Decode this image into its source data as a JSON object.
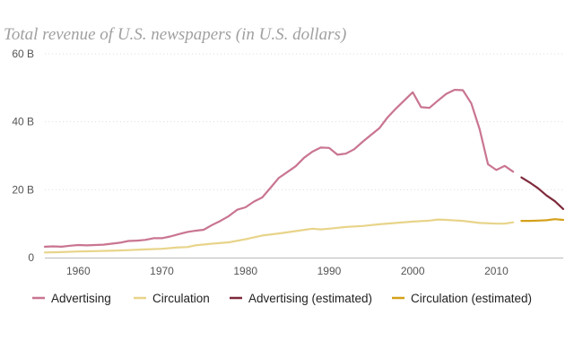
{
  "chart_data": {
    "type": "line",
    "title": "Total revenue of U.S. newspapers (in U.S. dollars)",
    "xlabel": "",
    "ylabel": "",
    "xlim": [
      1956,
      2018
    ],
    "ylim": [
      0,
      60
    ],
    "y_ticks": [
      {
        "value": 0,
        "label": "0"
      },
      {
        "value": 20,
        "label": "20 B"
      },
      {
        "value": 40,
        "label": "40 B"
      },
      {
        "value": 60,
        "label": "60 B"
      }
    ],
    "x_ticks": [
      {
        "value": 1960,
        "label": "1960"
      },
      {
        "value": 1970,
        "label": "1970"
      },
      {
        "value": 1980,
        "label": "1980"
      },
      {
        "value": 1990,
        "label": "1990"
      },
      {
        "value": 2000,
        "label": "2000"
      },
      {
        "value": 2010,
        "label": "2010"
      }
    ],
    "grid": true,
    "legend_position": "bottom",
    "series": [
      {
        "name": "Advertising",
        "color": "#c97590",
        "dash": false,
        "points": [
          [
            1956,
            3.2
          ],
          [
            1957,
            3.3
          ],
          [
            1958,
            3.2
          ],
          [
            1959,
            3.5
          ],
          [
            1960,
            3.7
          ],
          [
            1961,
            3.6
          ],
          [
            1962,
            3.7
          ],
          [
            1963,
            3.8
          ],
          [
            1964,
            4.1
          ],
          [
            1965,
            4.4
          ],
          [
            1966,
            4.9
          ],
          [
            1967,
            5.0
          ],
          [
            1968,
            5.2
          ],
          [
            1969,
            5.7
          ],
          [
            1970,
            5.7
          ],
          [
            1971,
            6.2
          ],
          [
            1972,
            6.9
          ],
          [
            1973,
            7.5
          ],
          [
            1974,
            7.9
          ],
          [
            1975,
            8.2
          ],
          [
            1976,
            9.6
          ],
          [
            1977,
            10.8
          ],
          [
            1978,
            12.2
          ],
          [
            1979,
            14.1
          ],
          [
            1980,
            14.8
          ],
          [
            1981,
            16.5
          ],
          [
            1982,
            17.7
          ],
          [
            1983,
            20.6
          ],
          [
            1984,
            23.5
          ],
          [
            1985,
            25.2
          ],
          [
            1986,
            26.9
          ],
          [
            1987,
            29.4
          ],
          [
            1988,
            31.2
          ],
          [
            1989,
            32.4
          ],
          [
            1990,
            32.3
          ],
          [
            1991,
            30.3
          ],
          [
            1992,
            30.6
          ],
          [
            1993,
            31.9
          ],
          [
            1994,
            34.1
          ],
          [
            1995,
            36.1
          ],
          [
            1996,
            38.1
          ],
          [
            1997,
            41.3
          ],
          [
            1998,
            43.9
          ],
          [
            1999,
            46.3
          ],
          [
            2000,
            48.7
          ],
          [
            2001,
            44.3
          ],
          [
            2002,
            44.1
          ],
          [
            2003,
            46.2
          ],
          [
            2004,
            48.2
          ],
          [
            2005,
            49.4
          ],
          [
            2006,
            49.3
          ],
          [
            2007,
            45.4
          ],
          [
            2008,
            37.8
          ],
          [
            2009,
            27.5
          ],
          [
            2010,
            25.8
          ],
          [
            2011,
            27.0
          ],
          [
            2012,
            25.3
          ]
        ]
      },
      {
        "name": "Circulation",
        "color": "#e8d48a",
        "dash": false,
        "points": [
          [
            1956,
            1.5
          ],
          [
            1958,
            1.6
          ],
          [
            1960,
            1.8
          ],
          [
            1962,
            1.9
          ],
          [
            1964,
            2.0
          ],
          [
            1966,
            2.2
          ],
          [
            1968,
            2.4
          ],
          [
            1970,
            2.6
          ],
          [
            1972,
            3.0
          ],
          [
            1973,
            3.1
          ],
          [
            1974,
            3.6
          ],
          [
            1976,
            4.1
          ],
          [
            1978,
            4.5
          ],
          [
            1980,
            5.4
          ],
          [
            1982,
            6.5
          ],
          [
            1984,
            7.1
          ],
          [
            1986,
            7.8
          ],
          [
            1988,
            8.5
          ],
          [
            1989,
            8.3
          ],
          [
            1990,
            8.5
          ],
          [
            1992,
            9.0
          ],
          [
            1994,
            9.3
          ],
          [
            1996,
            9.8
          ],
          [
            1998,
            10.2
          ],
          [
            2000,
            10.6
          ],
          [
            2002,
            10.9
          ],
          [
            2003,
            11.2
          ],
          [
            2004,
            11.1
          ],
          [
            2006,
            10.8
          ],
          [
            2008,
            10.2
          ],
          [
            2010,
            10.0
          ],
          [
            2011,
            10.0
          ],
          [
            2012,
            10.4
          ]
        ]
      },
      {
        "name": "Advertising (estimated)",
        "color": "#7e2a3b",
        "dash": false,
        "points": [
          [
            2013,
            23.6
          ],
          [
            2014,
            22.1
          ],
          [
            2015,
            20.4
          ],
          [
            2016,
            18.3
          ],
          [
            2017,
            16.6
          ],
          [
            2018,
            14.3
          ]
        ]
      },
      {
        "name": "Circulation (estimated)",
        "color": "#d4a11a",
        "dash": false,
        "points": [
          [
            2013,
            10.8
          ],
          [
            2014,
            10.8
          ],
          [
            2015,
            10.9
          ],
          [
            2016,
            11.0
          ],
          [
            2017,
            11.3
          ],
          [
            2018,
            11.1
          ]
        ]
      }
    ]
  }
}
